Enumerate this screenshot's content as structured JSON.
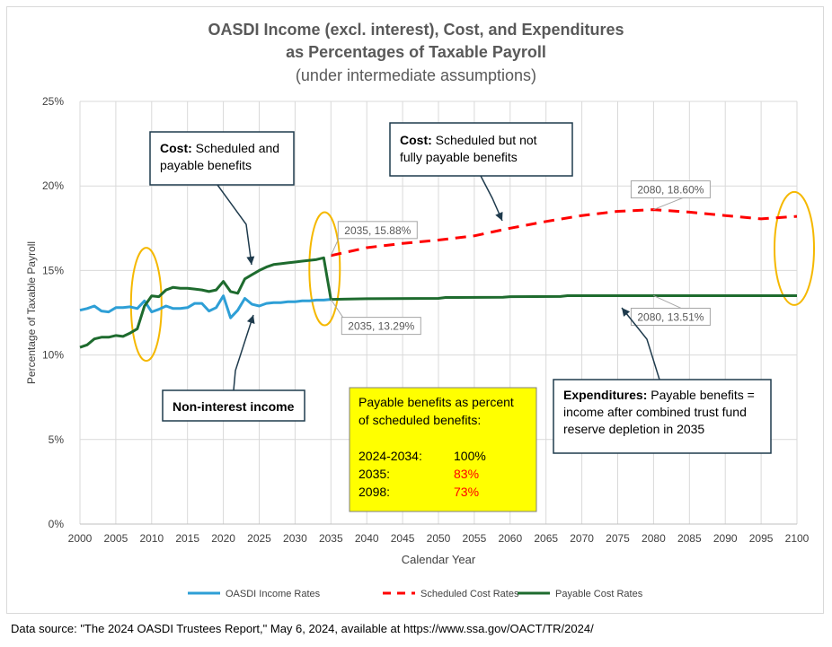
{
  "chart_data": {
    "type": "line",
    "title": [
      "OASDI Income (excl. interest), Cost, and Expenditures",
      "as Percentages of Taxable Payroll"
    ],
    "subtitle": "(under intermediate assumptions)",
    "xlabel": "Calendar Year",
    "ylabel": "Percentage of Taxable Payroll",
    "xlim": [
      2000,
      2100
    ],
    "ylim": [
      0,
      25
    ],
    "x_ticks": [
      "2000",
      "2005",
      "2010",
      "2015",
      "2020",
      "2025",
      "2030",
      "2035",
      "2040",
      "2045",
      "2050",
      "2055",
      "2060",
      "2065",
      "2070",
      "2075",
      "2080",
      "2085",
      "2090",
      "2095",
      "2100"
    ],
    "y_ticks": [
      "0%",
      "5%",
      "10%",
      "15%",
      "20%",
      "25%"
    ],
    "grid": "vertical and horizontal",
    "legend_position": "bottom",
    "series": [
      {
        "name": "OASDI Income Rates",
        "style": "solid",
        "color": "#2e9fd6",
        "points": [
          [
            2000,
            12.65
          ],
          [
            2001,
            12.75
          ],
          [
            2002,
            12.9
          ],
          [
            2003,
            12.6
          ],
          [
            2004,
            12.55
          ],
          [
            2005,
            12.8
          ],
          [
            2006,
            12.8
          ],
          [
            2007,
            12.85
          ],
          [
            2008,
            12.75
          ],
          [
            2009,
            13.2
          ],
          [
            2010,
            12.55
          ],
          [
            2011,
            12.7
          ],
          [
            2012,
            12.9
          ],
          [
            2013,
            12.75
          ],
          [
            2014,
            12.75
          ],
          [
            2015,
            12.8
          ],
          [
            2016,
            13.05
          ],
          [
            2017,
            13.05
          ],
          [
            2018,
            12.6
          ],
          [
            2019,
            12.8
          ],
          [
            2020,
            13.5
          ],
          [
            2021,
            12.2
          ],
          [
            2022,
            12.65
          ],
          [
            2023,
            13.35
          ],
          [
            2024,
            13.0
          ],
          [
            2025,
            12.9
          ],
          [
            2026,
            13.05
          ],
          [
            2027,
            13.1
          ],
          [
            2028,
            13.1
          ],
          [
            2029,
            13.15
          ],
          [
            2030,
            13.15
          ],
          [
            2031,
            13.2
          ],
          [
            2032,
            13.2
          ],
          [
            2033,
            13.25
          ],
          [
            2034,
            13.25
          ],
          [
            2035,
            13.29
          ]
        ]
      },
      {
        "name": "Scheduled Cost Rates",
        "style": "dashed",
        "color": "#ff0000",
        "points": [
          [
            2035,
            15.88
          ],
          [
            2040,
            16.35
          ],
          [
            2045,
            16.6
          ],
          [
            2050,
            16.8
          ],
          [
            2055,
            17.05
          ],
          [
            2060,
            17.5
          ],
          [
            2065,
            17.9
          ],
          [
            2070,
            18.25
          ],
          [
            2075,
            18.5
          ],
          [
            2080,
            18.6
          ],
          [
            2085,
            18.45
          ],
          [
            2090,
            18.25
          ],
          [
            2095,
            18.05
          ],
          [
            2100,
            18.2
          ]
        ]
      },
      {
        "name": "Payable Cost Rates",
        "style": "solid",
        "color": "#1e6b2e",
        "points": [
          [
            2000,
            10.45
          ],
          [
            2001,
            10.6
          ],
          [
            2002,
            10.95
          ],
          [
            2003,
            11.05
          ],
          [
            2004,
            11.05
          ],
          [
            2005,
            11.15
          ],
          [
            2006,
            11.1
          ],
          [
            2007,
            11.3
          ],
          [
            2008,
            11.55
          ],
          [
            2009,
            12.9
          ],
          [
            2010,
            13.5
          ],
          [
            2011,
            13.45
          ],
          [
            2012,
            13.85
          ],
          [
            2013,
            14.0
          ],
          [
            2014,
            13.95
          ],
          [
            2015,
            13.95
          ],
          [
            2016,
            13.9
          ],
          [
            2017,
            13.85
          ],
          [
            2018,
            13.75
          ],
          [
            2019,
            13.85
          ],
          [
            2020,
            14.35
          ],
          [
            2021,
            13.75
          ],
          [
            2022,
            13.65
          ],
          [
            2023,
            14.5
          ],
          [
            2024,
            14.75
          ],
          [
            2025,
            15.0
          ],
          [
            2026,
            15.2
          ],
          [
            2027,
            15.35
          ],
          [
            2028,
            15.4
          ],
          [
            2029,
            15.45
          ],
          [
            2030,
            15.5
          ],
          [
            2031,
            15.55
          ],
          [
            2032,
            15.6
          ],
          [
            2033,
            15.65
          ],
          [
            2034,
            15.75
          ],
          [
            2035,
            13.29
          ],
          [
            2040,
            13.33
          ],
          [
            2050,
            13.35
          ],
          [
            2051,
            13.4
          ],
          [
            2059,
            13.42
          ],
          [
            2060,
            13.45
          ],
          [
            2067,
            13.46
          ],
          [
            2068,
            13.51
          ],
          [
            2080,
            13.51
          ],
          [
            2100,
            13.51
          ]
        ]
      }
    ],
    "data_labels": [
      {
        "text": "2035, 15.88%",
        "x": 2035,
        "y": 15.88
      },
      {
        "text": "2035, 13.29%",
        "x": 2035,
        "y": 13.29
      },
      {
        "text": "2080, 18.60%",
        "x": 2080,
        "y": 18.6
      },
      {
        "text": "2080, 13.51%",
        "x": 2080,
        "y": 13.51
      }
    ],
    "annotations": {
      "cost_payable": {
        "bold": "Cost:",
        "lines": [
          " Scheduled and",
          "payable benefits"
        ]
      },
      "cost_scheduled": {
        "bold": "Cost:",
        "lines": [
          " Scheduled but not",
          "fully  payable benefits"
        ]
      },
      "income": {
        "bold": "Non-interest income"
      },
      "expenditures": {
        "bold": "Expenditures:",
        "lines": [
          " Payable benefits =",
          "income after combined trust fund",
          "reserve depletion in 2035"
        ]
      }
    },
    "payable_box": {
      "heading": [
        "Payable benefits as percent",
        "of scheduled benefits:"
      ],
      "rows": [
        {
          "period": "2024-2034:",
          "value": "100%",
          "color": "#000000"
        },
        {
          "period": "2035:",
          "value": "83%",
          "color": "#ff0000"
        },
        {
          "period": "2098:",
          "value": "73%",
          "color": "#ff0000"
        }
      ],
      "background": "#ffff00"
    },
    "highlight_ovals_at_years": [
      2010,
      2035,
      2100
    ],
    "oval_color": "#f5b800"
  },
  "footer": {
    "source": "Data source: \"The 2024 OASDI Trustees Report,\" May 6, 2024, available at https://www.ssa.gov/OACT/TR/2024/"
  }
}
